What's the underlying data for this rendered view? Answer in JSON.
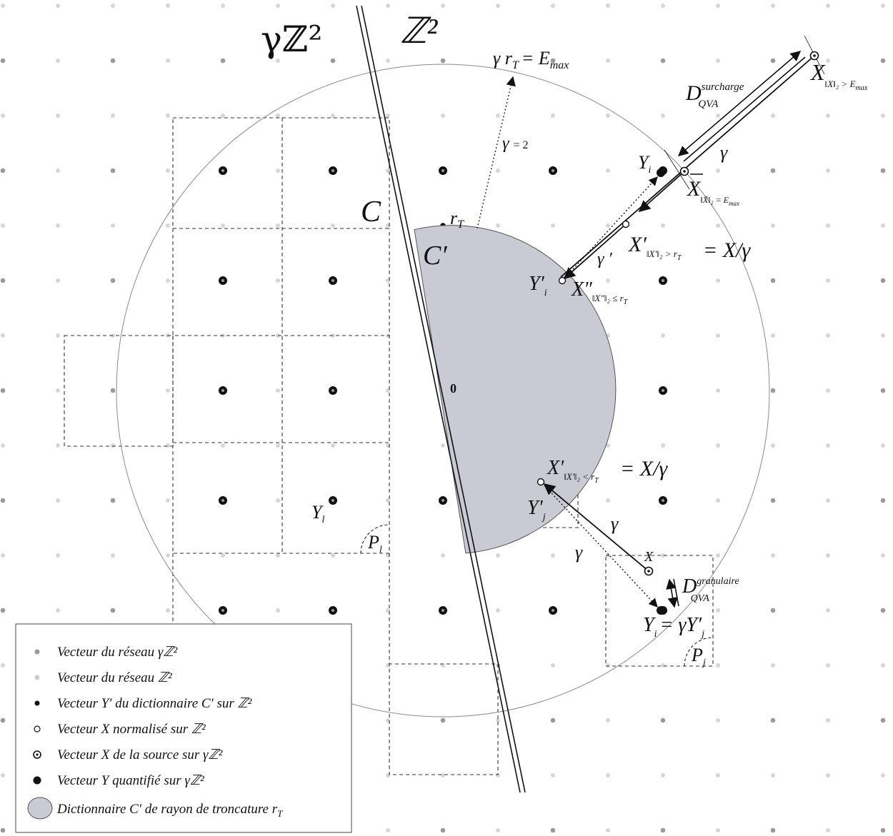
{
  "colors": {
    "lattice_gamma": "#9a9a9a",
    "lattice_z2": "#cdcdcd",
    "dict_fill": "#c9cad3",
    "line": "#111111"
  },
  "labels": {
    "gamma_lattice": "γℤ²",
    "z2_lattice": "ℤ²",
    "radius_eq_main": "γ r",
    "radius_eq_sub": "T",
    "radius_eq_rhs": "= E",
    "radius_eq_rhs_sub": "max",
    "gamma_value": "γ",
    "gamma_value_eq": "= 2",
    "C": "C",
    "C_prime": "C′",
    "r_T": "r",
    "r_T_sub": "T",
    "zero": "0",
    "D_overload": "D",
    "D_overload_sup": "surcharge",
    "D_overload_sub": "QVA",
    "X_overload": "X",
    "X_overload_sub": "‖X‖₂ > E",
    "X_overload_sub2": "max",
    "gamma_a": "γ",
    "Y_i": "Y",
    "Y_i_sub": "i",
    "X_bar": "X",
    "X_bar_sub": "‖X̄‖₂ = E",
    "X_bar_sub2": "max",
    "X_prime_out": "X′",
    "X_prime_out_sub": "‖X′‖₂ > r",
    "X_prime_out_sub2": "T",
    "eq_fraction": "= X/γ",
    "gamma_prime": "γ ′",
    "Y_prime_i": "Y′",
    "Y_prime_i_sub": "i",
    "X_double": "X″",
    "X_double_sub": "‖X″‖₂ ≤ r",
    "X_double_sub2": "T",
    "X_prime_in": "X′",
    "X_prime_in_sub": "‖X′‖₂ < r",
    "X_prime_in_sub2": "T",
    "Y_prime_j": "Y′",
    "Y_prime_j_sub": "j",
    "gamma_b": "γ",
    "gamma_c": "γ",
    "X_small": "X",
    "D_gran": "D",
    "D_gran_sup": "granulaire",
    "D_gran_sub": "QVA",
    "Yj_eq": "Y",
    "Yj_eq_sub": "i",
    "Yj_eq_rhs": "= γY′",
    "Yj_eq_rhs_sub": "j",
    "Y_l": "Y",
    "Y_l_sub": "l",
    "P_l": "P",
    "P_l_sub": "l",
    "P_j": "P",
    "P_j_sub": "j"
  },
  "legend": {
    "items": [
      {
        "pre": "Vecteur du réseau ",
        "mid": "",
        "post": "γℤ²"
      },
      {
        "pre": "Vecteur du réseau ",
        "mid": "",
        "post": "ℤ²"
      },
      {
        "pre": "Vecteur ",
        "mid": "Y′",
        "post": " du dictionnaire C′ sur ℤ²"
      },
      {
        "pre": "Vecteur ",
        "mid": "X",
        "post": " normalisé sur ℤ²"
      },
      {
        "pre": "Vecteur ",
        "mid": "X",
        "post": " de la source sur γℤ²"
      },
      {
        "pre": "Vecteur ",
        "mid": "Y",
        "post": " quantifié sur γℤ²"
      },
      {
        "pre": "Dictionnaire C′ de rayon de troncature ",
        "mid": "r",
        "post": "T"
      }
    ]
  }
}
